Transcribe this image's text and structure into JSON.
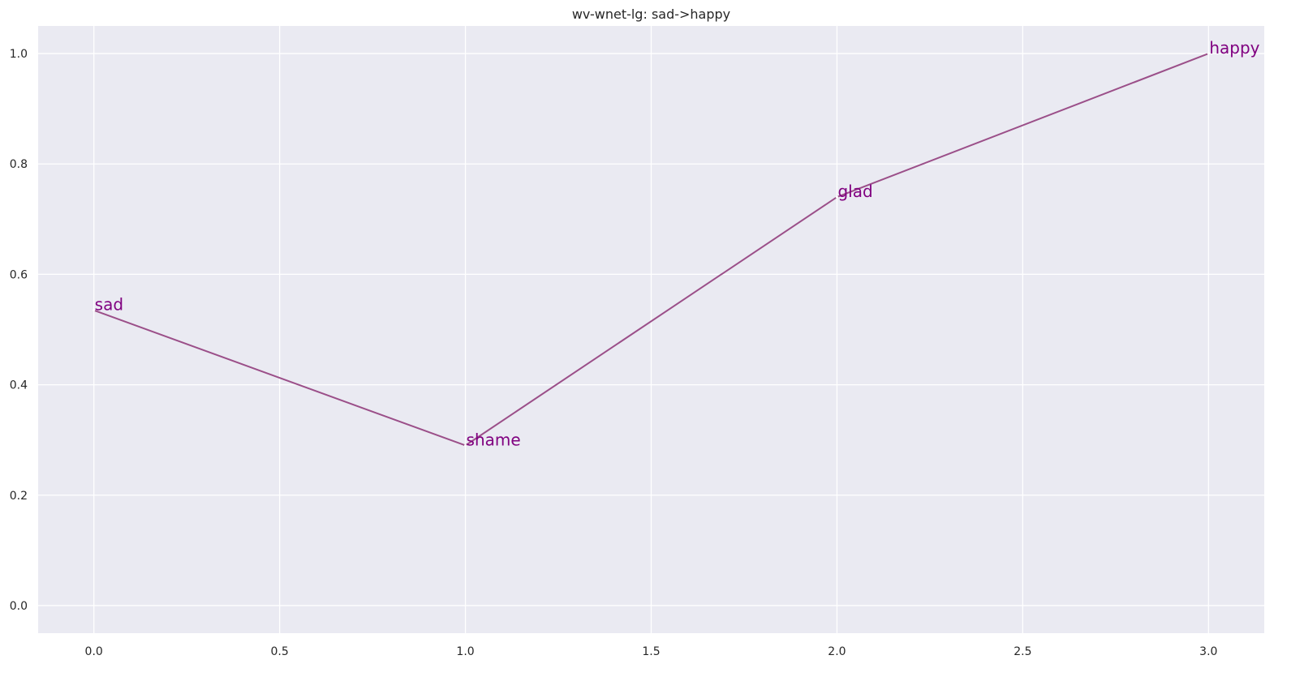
{
  "chart_data": {
    "type": "line",
    "title": "wv-wnet-lg: sad->happy",
    "xlabel": "",
    "ylabel": "",
    "xlim": [
      -0.15,
      3.15
    ],
    "ylim": [
      -0.05,
      1.05
    ],
    "x_ticks": [
      0.0,
      0.5,
      1.0,
      1.5,
      2.0,
      2.5,
      3.0
    ],
    "x_tick_labels": [
      "0.0",
      "0.5",
      "1.0",
      "1.5",
      "2.0",
      "2.5",
      "3.0"
    ],
    "y_ticks": [
      0.0,
      0.2,
      0.4,
      0.6,
      0.8,
      1.0
    ],
    "y_tick_labels": [
      "0.0",
      "0.2",
      "0.4",
      "0.6",
      "0.8",
      "1.0"
    ],
    "grid": true,
    "series": [
      {
        "x": [
          0,
          1,
          2,
          3
        ],
        "y": [
          0.535,
          0.29,
          0.74,
          1.0
        ],
        "labels": [
          "sad",
          "shame",
          "glad",
          "happy"
        ],
        "color": "#9b4f89"
      }
    ],
    "label_color": "#800080",
    "background_color": "#eaeaf2",
    "grid_color": "#ffffff"
  }
}
